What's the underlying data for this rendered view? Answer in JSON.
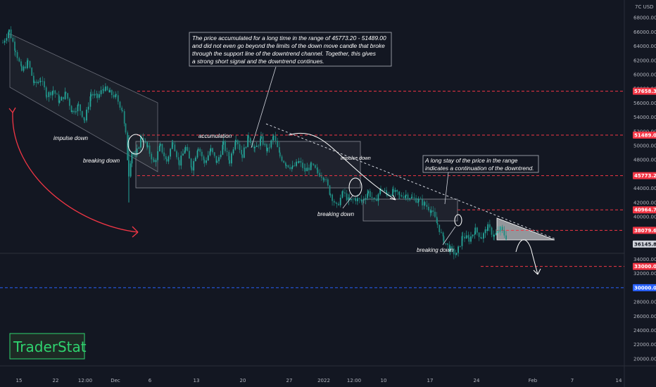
{
  "chart_data": {
    "type": "candlestick",
    "currency_label": "7C USD",
    "y_ticks": [
      20000,
      22000,
      24000,
      26000,
      28000,
      30000,
      32000,
      34000,
      36000,
      38000,
      40000,
      42000,
      44000,
      46000,
      48000,
      50000,
      52000,
      54000,
      56000,
      58000,
      60000,
      62000,
      64000,
      66000,
      68000
    ],
    "ylim": [
      19000,
      70500
    ],
    "x_ticks": [
      "15",
      "22",
      "12:00",
      "Dec",
      "6",
      "13",
      "20",
      "27",
      "2022",
      "12:00",
      "10",
      "17",
      "24",
      "Feb",
      "7",
      "14"
    ],
    "price_path": [
      [
        0,
        64500
      ],
      [
        2,
        66200
      ],
      [
        4,
        63500
      ],
      [
        6,
        60500
      ],
      [
        8,
        61800
      ],
      [
        10,
        58600
      ],
      [
        12,
        59300
      ],
      [
        14,
        57100
      ],
      [
        16,
        57800
      ],
      [
        18,
        56200
      ],
      [
        20,
        57400
      ],
      [
        22,
        54800
      ],
      [
        24,
        55600
      ],
      [
        26,
        53600
      ],
      [
        28,
        57300
      ],
      [
        30,
        56800
      ],
      [
        32,
        58100
      ],
      [
        34,
        57400
      ],
      [
        36,
        56800
      ],
      [
        38,
        55000
      ],
      [
        39,
        51489
      ],
      [
        40,
        46000
      ],
      [
        41,
        49200
      ],
      [
        42,
        48300
      ],
      [
        44,
        51300
      ],
      [
        46,
        49600
      ],
      [
        48,
        47600
      ],
      [
        50,
        49900
      ],
      [
        52,
        47800
      ],
      [
        54,
        50600
      ],
      [
        56,
        47500
      ],
      [
        58,
        49700
      ],
      [
        60,
        46900
      ],
      [
        62,
        49900
      ],
      [
        64,
        47600
      ],
      [
        66,
        49400
      ],
      [
        68,
        47600
      ],
      [
        70,
        50200
      ],
      [
        72,
        47800
      ],
      [
        74,
        51200
      ],
      [
        76,
        48600
      ],
      [
        78,
        51300
      ],
      [
        80,
        49400
      ],
      [
        82,
        50900
      ],
      [
        84,
        49300
      ],
      [
        86,
        51300
      ],
      [
        88,
        48500
      ],
      [
        90,
        47400
      ],
      [
        92,
        46900
      ],
      [
        94,
        47700
      ],
      [
        96,
        46500
      ],
      [
        98,
        47200
      ],
      [
        100,
        46200
      ],
      [
        102,
        45600
      ],
      [
        104,
        43200
      ],
      [
        106,
        41400
      ],
      [
        108,
        43400
      ],
      [
        110,
        42200
      ],
      [
        112,
        42500
      ],
      [
        114,
        42200
      ],
      [
        116,
        43500
      ],
      [
        118,
        42100
      ],
      [
        120,
        43900
      ],
      [
        122,
        43200
      ],
      [
        124,
        43500
      ],
      [
        126,
        42900
      ],
      [
        128,
        43100
      ],
      [
        130,
        42600
      ],
      [
        132,
        42300
      ],
      [
        134,
        41700
      ],
      [
        136,
        40900
      ],
      [
        138,
        38900
      ],
      [
        140,
        36600
      ],
      [
        142,
        35400
      ],
      [
        144,
        34600
      ],
      [
        146,
        37300
      ],
      [
        148,
        36800
      ],
      [
        150,
        38100
      ],
      [
        152,
        37100
      ],
      [
        154,
        38500
      ],
      [
        156,
        37300
      ],
      [
        158,
        38200
      ],
      [
        160,
        37000
      ]
    ],
    "levels": [
      {
        "value": 57658.36,
        "label": "57658.36",
        "color": "#f23645",
        "style": "dashed"
      },
      {
        "value": 51489.0,
        "label": "51489.00",
        "color": "#f23645",
        "style": "dashed"
      },
      {
        "value": 45773.2,
        "label": "45773.20",
        "color": "#f23645",
        "style": "dashed"
      },
      {
        "value": 40964.75,
        "label": "40964.75",
        "color": "#f23645",
        "style": "dashed"
      },
      {
        "value": 38079.65,
        "label": "38079.65",
        "color": "#f23645",
        "style": "dashed"
      },
      {
        "value": 33000.0,
        "label": "33000.00",
        "color": "#f23645",
        "style": "dashed"
      },
      {
        "value": 30000.0,
        "label": "30000.00",
        "color": "#2962ff",
        "style": "dashed"
      }
    ],
    "current_price": {
      "value": 36145.81,
      "label": "36145.81"
    },
    "annotations": {
      "impulse_down_1": "impulse down",
      "breaking_down_1": "breaking down",
      "accumulation": "accumulation",
      "impulse_down_2": "impulse down",
      "breaking_down_2": "breaking down",
      "breaking_down_3": "breaking down"
    },
    "note_1": [
      "The price accumulated for a long time in the range of 45773.20 - 51489.00",
      "and did not even go beyond the limits of the down move candle that broke",
      "through the support line of the downtrend channel. Together, this gives",
      "a strong short signal and the downtrend continues."
    ],
    "note_2": [
      "A long stay of the price in the range",
      "indicates a continuation of the downtrend."
    ],
    "logo": "TraderStat",
    "colors": {
      "background": "#131722",
      "candle_up": "#26a69a",
      "candle_down": "#26a69a",
      "level_red": "#f23645",
      "level_blue": "#2962ff",
      "arrow_red": "#f23645",
      "logo_green": "#2fd46f"
    }
  }
}
